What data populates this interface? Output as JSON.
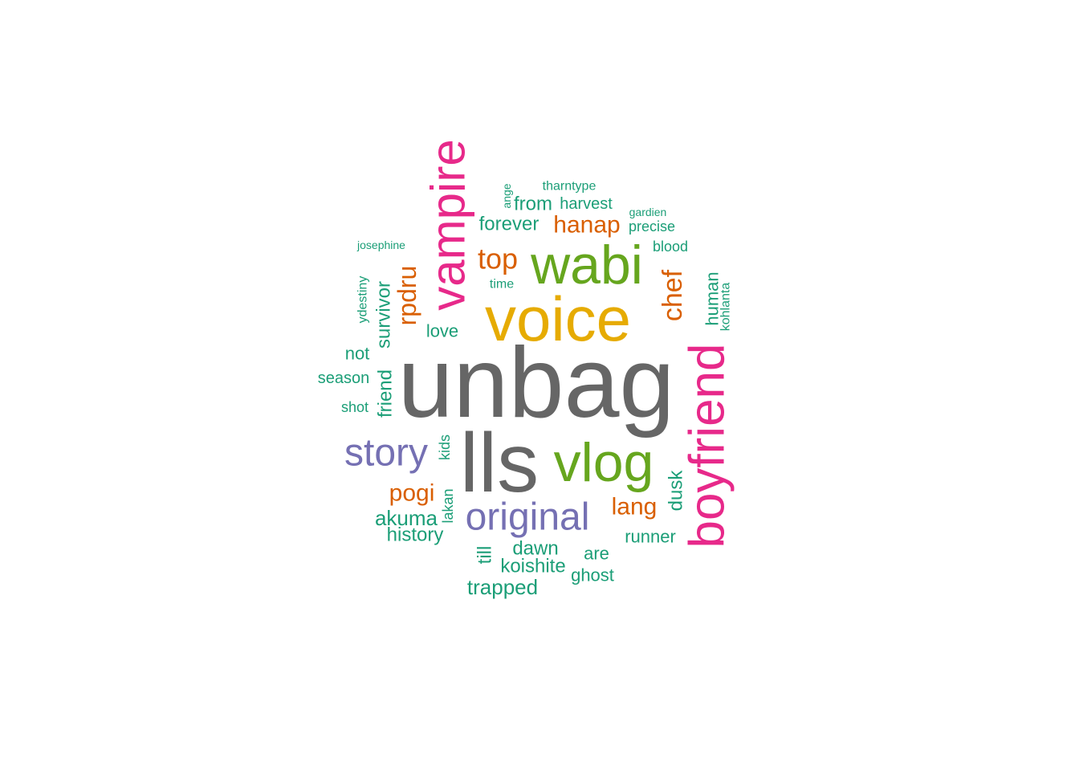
{
  "palette": {
    "teal": "#1b9e77",
    "orange": "#d95f02",
    "purple": "#7570b3",
    "pink": "#e7298a",
    "green": "#66a61e",
    "gold": "#e6ab02",
    "gray": "#666666"
  },
  "words": [
    {
      "id": "unbag",
      "text": "unbag",
      "color": "#666666"
    },
    {
      "id": "lls",
      "text": "lls",
      "color": "#666666"
    },
    {
      "id": "voice",
      "text": "voice",
      "color": "#e6ab02"
    },
    {
      "id": "wabi",
      "text": "wabi",
      "color": "#66a61e"
    },
    {
      "id": "vlog",
      "text": "vlog",
      "color": "#66a61e"
    },
    {
      "id": "vampire",
      "text": "vampire",
      "color": "#e7298a"
    },
    {
      "id": "boyfriend",
      "text": "boyfriend",
      "color": "#e7298a"
    },
    {
      "id": "story",
      "text": "story",
      "color": "#7570b3"
    },
    {
      "id": "original",
      "text": "original",
      "color": "#7570b3"
    },
    {
      "id": "top",
      "text": "top",
      "color": "#d95f02"
    },
    {
      "id": "hanap",
      "text": "hanap",
      "color": "#d95f02"
    },
    {
      "id": "chef",
      "text": "chef",
      "color": "#d95f02"
    },
    {
      "id": "rpdru",
      "text": "rpdru",
      "color": "#d95f02"
    },
    {
      "id": "pogi",
      "text": "pogi",
      "color": "#d95f02"
    },
    {
      "id": "lang",
      "text": "lang",
      "color": "#d95f02"
    },
    {
      "id": "forever",
      "text": "forever",
      "color": "#1b9e77"
    },
    {
      "id": "from",
      "text": "from",
      "color": "#1b9e77"
    },
    {
      "id": "harvest",
      "text": "harvest",
      "color": "#1b9e77"
    },
    {
      "id": "tharntype",
      "text": "tharntype",
      "color": "#1b9e77"
    },
    {
      "id": "ange",
      "text": "ange",
      "color": "#1b9e77"
    },
    {
      "id": "gardien",
      "text": "gardien",
      "color": "#1b9e77"
    },
    {
      "id": "precise",
      "text": "precise",
      "color": "#1b9e77"
    },
    {
      "id": "blood",
      "text": "blood",
      "color": "#1b9e77"
    },
    {
      "id": "josephine",
      "text": "josephine",
      "color": "#1b9e77"
    },
    {
      "id": "time",
      "text": "time",
      "color": "#1b9e77"
    },
    {
      "id": "ydestiny",
      "text": "ydestiny",
      "color": "#1b9e77"
    },
    {
      "id": "survivor",
      "text": "survivor",
      "color": "#1b9e77"
    },
    {
      "id": "love",
      "text": "love",
      "color": "#1b9e77"
    },
    {
      "id": "not",
      "text": "not",
      "color": "#1b9e77"
    },
    {
      "id": "season",
      "text": "season",
      "color": "#1b9e77"
    },
    {
      "id": "shot",
      "text": "shot",
      "color": "#1b9e77"
    },
    {
      "id": "friend",
      "text": "friend",
      "color": "#1b9e77"
    },
    {
      "id": "human",
      "text": "human",
      "color": "#1b9e77"
    },
    {
      "id": "kohlanta",
      "text": "kohlanta",
      "color": "#1b9e77"
    },
    {
      "id": "kids",
      "text": "kids",
      "color": "#1b9e77"
    },
    {
      "id": "dusk",
      "text": "dusk",
      "color": "#1b9e77"
    },
    {
      "id": "akuma",
      "text": "akuma",
      "color": "#1b9e77"
    },
    {
      "id": "lakan",
      "text": "lakan",
      "color": "#1b9e77"
    },
    {
      "id": "history",
      "text": "history",
      "color": "#1b9e77"
    },
    {
      "id": "runner",
      "text": "runner",
      "color": "#1b9e77"
    },
    {
      "id": "till",
      "text": "till",
      "color": "#1b9e77"
    },
    {
      "id": "dawn",
      "text": "dawn",
      "color": "#1b9e77"
    },
    {
      "id": "are",
      "text": "are",
      "color": "#1b9e77"
    },
    {
      "id": "koishite",
      "text": "koishite",
      "color": "#1b9e77"
    },
    {
      "id": "ghost",
      "text": "ghost",
      "color": "#1b9e77"
    },
    {
      "id": "trapped",
      "text": "trapped",
      "color": "#1b9e77"
    }
  ]
}
